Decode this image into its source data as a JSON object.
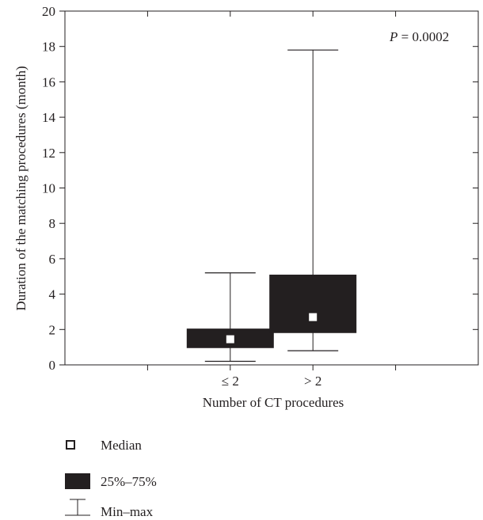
{
  "chart_data": {
    "type": "box",
    "title": "",
    "annotation": {
      "italic_part": "P",
      "rest": " = 0.0002"
    },
    "xlabel": "Number of CT procedures",
    "ylabel": "Duration of the matching procedures (month)",
    "ylim": [
      0,
      20
    ],
    "yticks": [
      "0",
      "2",
      "4",
      "6",
      "8",
      "10",
      "12",
      "14",
      "16",
      "18",
      "20"
    ],
    "categories": [
      "≤ 2",
      "> 2"
    ],
    "boxes": [
      {
        "category": "≤ 2",
        "min": 0.2,
        "q1": 0.95,
        "median": 1.45,
        "q3": 2.05,
        "max": 5.2
      },
      {
        "category": "> 2",
        "min": 0.8,
        "q1": 1.8,
        "median": 2.7,
        "q3": 5.1,
        "max": 17.8
      }
    ],
    "legend": [
      {
        "symbol": "median",
        "label": "Median"
      },
      {
        "symbol": "box",
        "label": "25%–75%"
      },
      {
        "symbol": "whisker",
        "label": "Min–max"
      }
    ],
    "colors": {
      "box": "#231f20",
      "median_marker": "#ffffff",
      "axis": "#231f20"
    },
    "grid": false,
    "legend_position": "bottom-left"
  }
}
